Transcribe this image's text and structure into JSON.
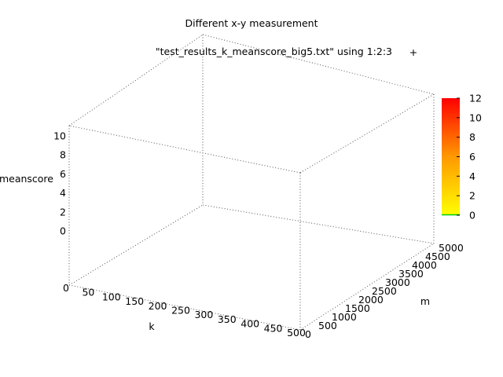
{
  "chart_data": {
    "type": "scatter",
    "plot_style": "3d-surface-pm3d",
    "title": "Different x-y measurement",
    "legend": {
      "entry": "\"test_results_k_meanscore_big5.txt\" using 1:2:3",
      "marker": "+",
      "marker_color": "#ff0000",
      "position": "top"
    },
    "xlabel": "k",
    "ylabel": "m",
    "zlabel": "meanscore",
    "xlim": [
      0,
      500
    ],
    "ylim": [
      0,
      5000
    ],
    "zlim": [
      0,
      10
    ],
    "x_ticks": [
      "0",
      "50",
      "100",
      "150",
      "200",
      "250",
      "300",
      "350",
      "400",
      "450",
      "500"
    ],
    "y_ticks": [
      "0",
      "500",
      "1000",
      "1500",
      "2000",
      "2500",
      "3000",
      "3500",
      "4000",
      "4500",
      "5000"
    ],
    "z_ticks": [
      "0",
      "2",
      "4",
      "6",
      "8",
      "10"
    ],
    "colorbar": {
      "ticks": [
        "0",
        "2",
        "4",
        "6",
        "8",
        "10",
        "12"
      ],
      "range": [
        0,
        12
      ],
      "colors": [
        "#00ee00",
        "#ffff00",
        "#ff8800",
        "#ff0000"
      ]
    },
    "points": []
  }
}
